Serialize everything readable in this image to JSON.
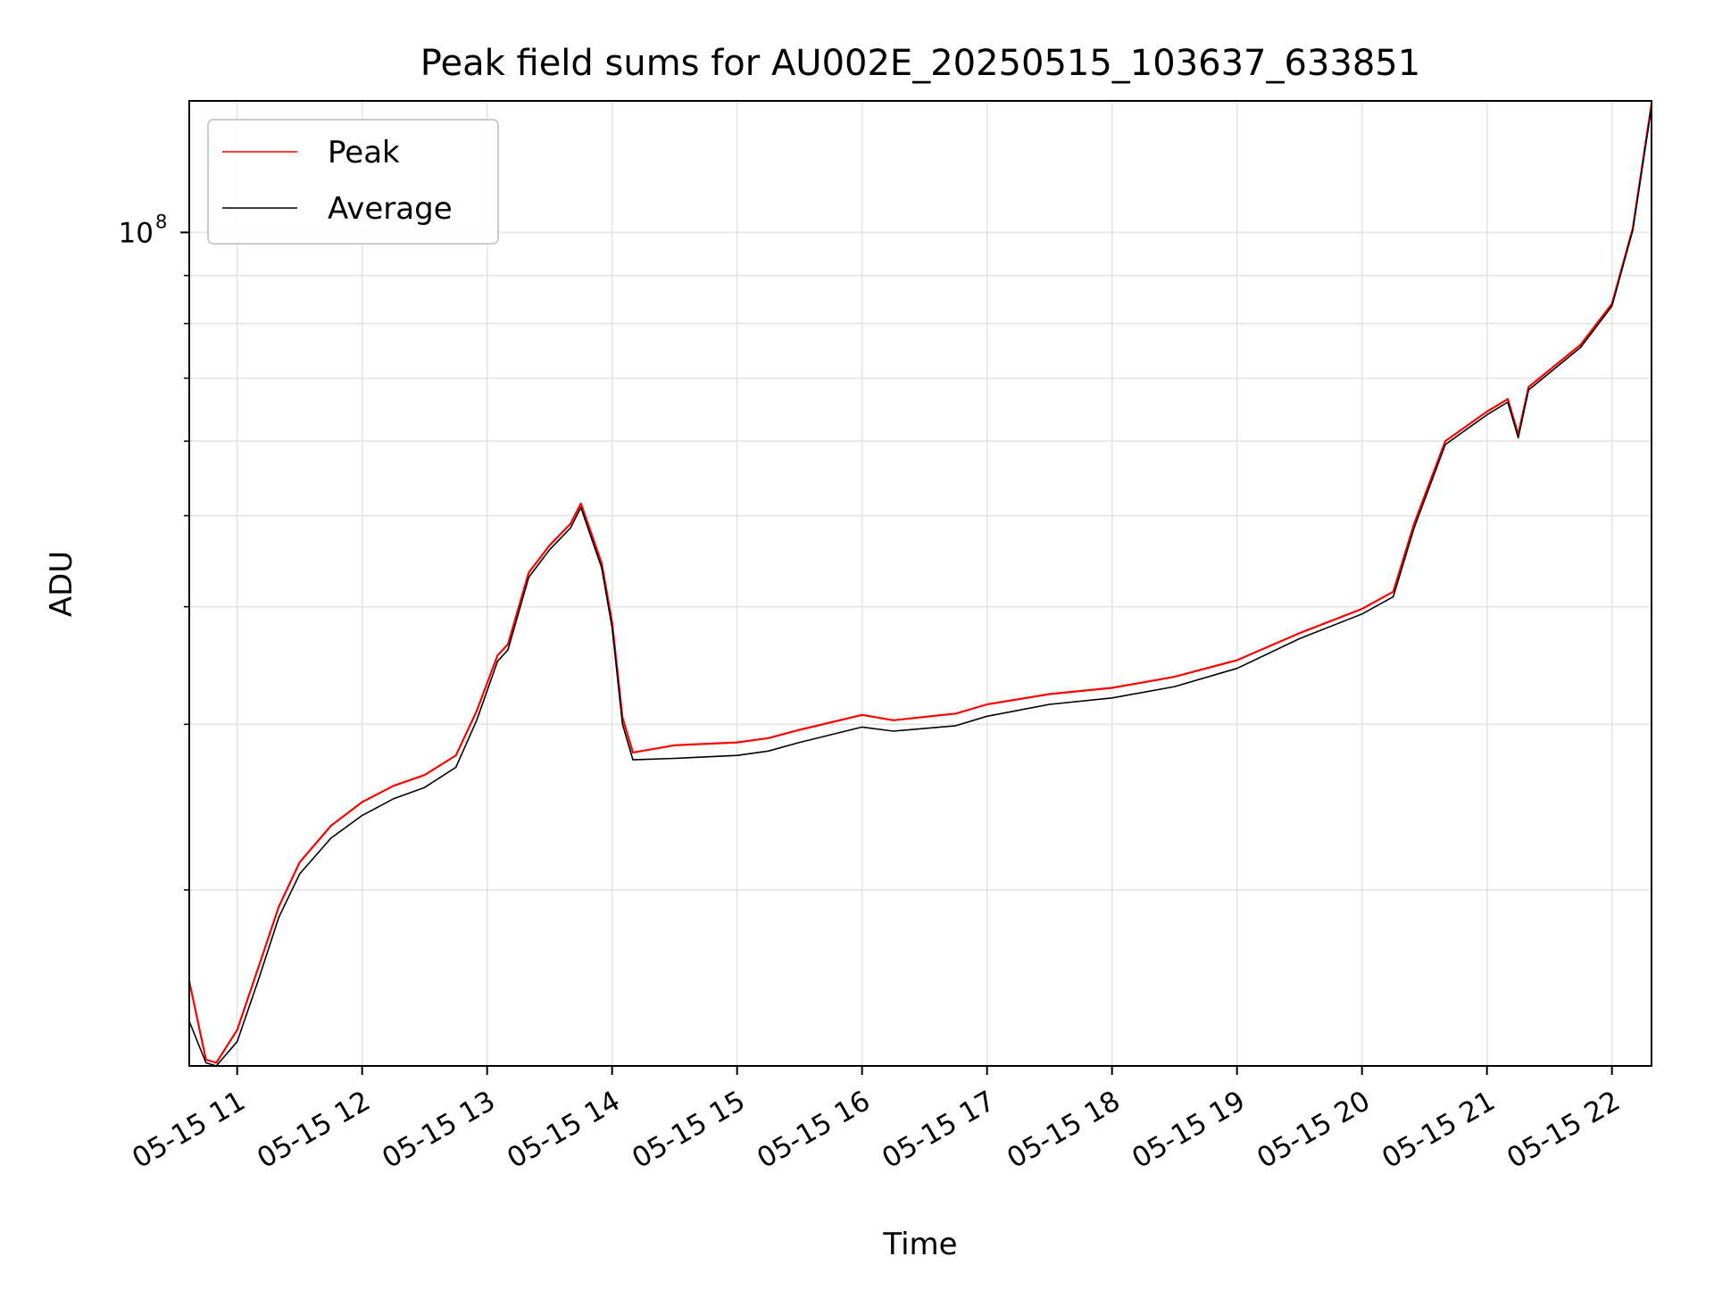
{
  "chart_data": {
    "type": "line",
    "title": "Peak field sums for AU002E_20250515_103637_633851",
    "xlabel": "Time",
    "ylabel": "ADU",
    "yscale": "log",
    "ylim": [
      13000000,
      138000000
    ],
    "xlim": [
      "2025-05-15 10:37",
      "2025-05-15 22:19"
    ],
    "grid": true,
    "legend": "top-left",
    "x_ticks": [
      "05-15 11",
      "05-15 12",
      "05-15 13",
      "05-15 14",
      "05-15 15",
      "05-15 16",
      "05-15 17",
      "05-15 18",
      "05-15 19",
      "05-15 20",
      "05-15 21",
      "05-15 22"
    ],
    "y_tick_labels": [
      {
        "value": 100000000,
        "base": "10",
        "exponent": "8"
      }
    ],
    "series": [
      {
        "name": "Peak",
        "color": "#ff0000",
        "points": [
          [
            "2025-05-15 10:37",
            16000000
          ],
          [
            "2025-05-15 10:45",
            13200000
          ],
          [
            "2025-05-15 10:50",
            13100000
          ],
          [
            "2025-05-15 11:00",
            14200000
          ],
          [
            "2025-05-15 11:10",
            16500000
          ],
          [
            "2025-05-15 11:20",
            19200000
          ],
          [
            "2025-05-15 11:30",
            21400000
          ],
          [
            "2025-05-15 11:45",
            23400000
          ],
          [
            "2025-05-15 12:00",
            24800000
          ],
          [
            "2025-05-15 12:15",
            25800000
          ],
          [
            "2025-05-15 12:30",
            26500000
          ],
          [
            "2025-05-15 12:45",
            27800000
          ],
          [
            "2025-05-15 12:55",
            31000000
          ],
          [
            "2025-05-15 13:05",
            35500000
          ],
          [
            "2025-05-15 13:10",
            36500000
          ],
          [
            "2025-05-15 13:20",
            43500000
          ],
          [
            "2025-05-15 13:30",
            46500000
          ],
          [
            "2025-05-15 13:40",
            49000000
          ],
          [
            "2025-05-15 13:45",
            51500000
          ],
          [
            "2025-05-15 13:55",
            44500000
          ],
          [
            "2025-05-15 14:00",
            38500000
          ],
          [
            "2025-05-15 14:05",
            30500000
          ],
          [
            "2025-05-15 14:10",
            28000000
          ],
          [
            "2025-05-15 14:30",
            28500000
          ],
          [
            "2025-05-15 15:00",
            28700000
          ],
          [
            "2025-05-15 15:15",
            29000000
          ],
          [
            "2025-05-15 15:30",
            29600000
          ],
          [
            "2025-05-15 16:00",
            30700000
          ],
          [
            "2025-05-15 16:15",
            30300000
          ],
          [
            "2025-05-15 16:45",
            30800000
          ],
          [
            "2025-05-15 17:00",
            31500000
          ],
          [
            "2025-05-15 17:30",
            32300000
          ],
          [
            "2025-05-15 18:00",
            32800000
          ],
          [
            "2025-05-15 18:30",
            33700000
          ],
          [
            "2025-05-15 19:00",
            35100000
          ],
          [
            "2025-05-15 19:30",
            37500000
          ],
          [
            "2025-05-15 20:00",
            39800000
          ],
          [
            "2025-05-15 20:15",
            41500000
          ],
          [
            "2025-05-15 20:25",
            49000000
          ],
          [
            "2025-05-15 20:40",
            60000000
          ],
          [
            "2025-05-15 21:00",
            64500000
          ],
          [
            "2025-05-15 21:10",
            66500000
          ],
          [
            "2025-05-15 21:15",
            61000000
          ],
          [
            "2025-05-15 21:20",
            68500000
          ],
          [
            "2025-05-15 21:45",
            76000000
          ],
          [
            "2025-05-15 22:00",
            84000000
          ],
          [
            "2025-05-15 22:10",
            101000000
          ],
          [
            "2025-05-15 22:19",
            137000000
          ]
        ]
      },
      {
        "name": "Average",
        "color": "#000000",
        "points": [
          [
            "2025-05-15 10:37",
            14500000
          ],
          [
            "2025-05-15 10:45",
            13100000
          ],
          [
            "2025-05-15 10:50",
            13000000
          ],
          [
            "2025-05-15 11:00",
            13800000
          ],
          [
            "2025-05-15 11:10",
            16000000
          ],
          [
            "2025-05-15 11:20",
            18700000
          ],
          [
            "2025-05-15 11:30",
            20800000
          ],
          [
            "2025-05-15 11:45",
            22700000
          ],
          [
            "2025-05-15 12:00",
            24000000
          ],
          [
            "2025-05-15 12:15",
            25000000
          ],
          [
            "2025-05-15 12:30",
            25700000
          ],
          [
            "2025-05-15 12:45",
            27000000
          ],
          [
            "2025-05-15 12:55",
            30300000
          ],
          [
            "2025-05-15 13:05",
            35000000
          ],
          [
            "2025-05-15 13:10",
            36000000
          ],
          [
            "2025-05-15 13:20",
            43000000
          ],
          [
            "2025-05-15 13:30",
            46000000
          ],
          [
            "2025-05-15 13:40",
            48500000
          ],
          [
            "2025-05-15 13:45",
            51000000
          ],
          [
            "2025-05-15 13:55",
            44000000
          ],
          [
            "2025-05-15 14:00",
            38000000
          ],
          [
            "2025-05-15 14:05",
            30000000
          ],
          [
            "2025-05-15 14:10",
            27500000
          ],
          [
            "2025-05-15 14:30",
            27600000
          ],
          [
            "2025-05-15 15:00",
            27800000
          ],
          [
            "2025-05-15 15:15",
            28100000
          ],
          [
            "2025-05-15 15:30",
            28700000
          ],
          [
            "2025-05-15 16:00",
            29800000
          ],
          [
            "2025-05-15 16:15",
            29500000
          ],
          [
            "2025-05-15 16:45",
            29900000
          ],
          [
            "2025-05-15 17:00",
            30600000
          ],
          [
            "2025-05-15 17:30",
            31500000
          ],
          [
            "2025-05-15 18:00",
            32000000
          ],
          [
            "2025-05-15 18:30",
            32900000
          ],
          [
            "2025-05-15 19:00",
            34400000
          ],
          [
            "2025-05-15 19:30",
            37000000
          ],
          [
            "2025-05-15 20:00",
            39300000
          ],
          [
            "2025-05-15 20:15",
            41000000
          ],
          [
            "2025-05-15 20:25",
            48500000
          ],
          [
            "2025-05-15 20:40",
            59500000
          ],
          [
            "2025-05-15 21:00",
            64000000
          ],
          [
            "2025-05-15 21:10",
            66000000
          ],
          [
            "2025-05-15 21:15",
            60500000
          ],
          [
            "2025-05-15 21:20",
            68000000
          ],
          [
            "2025-05-15 21:45",
            75500000
          ],
          [
            "2025-05-15 22:00",
            83500000
          ],
          [
            "2025-05-15 22:10",
            100500000
          ],
          [
            "2025-05-15 22:19",
            136000000
          ]
        ]
      }
    ]
  }
}
